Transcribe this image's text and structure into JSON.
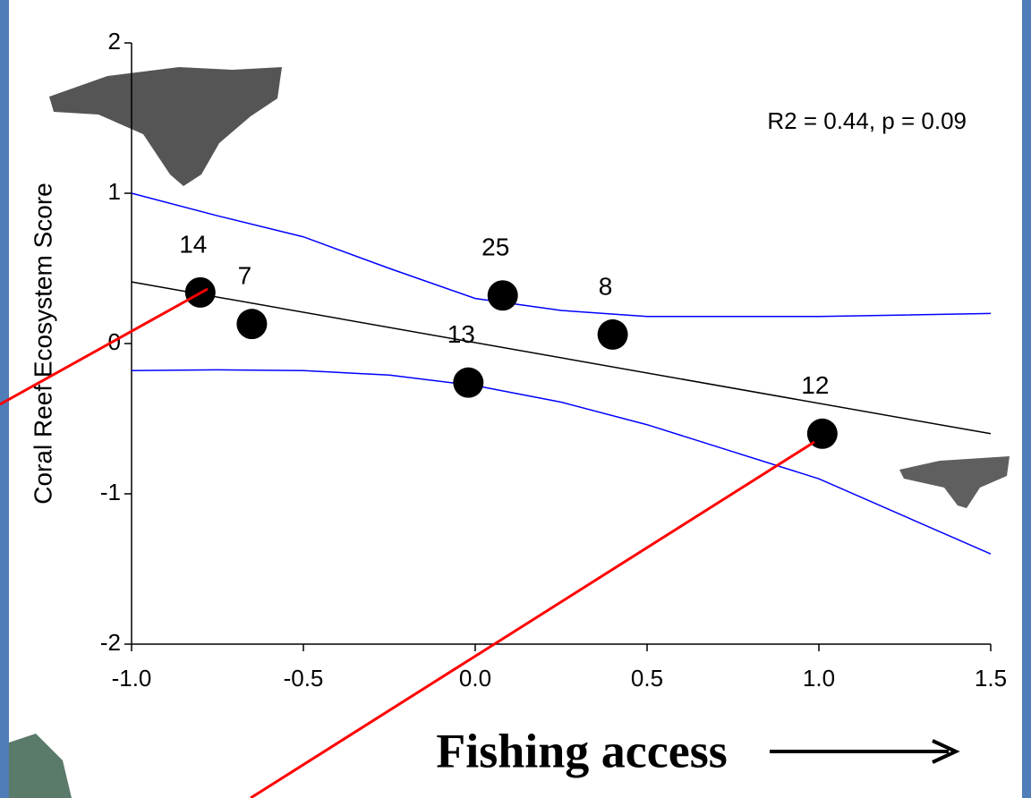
{
  "chart_data": {
    "type": "scatter",
    "y_label": "Coral Reef Ecosystem Score",
    "x_label": "Fishing access",
    "annotation": "R2 = 0.44, p = 0.09",
    "xlim": [
      -1.0,
      1.5
    ],
    "ylim": [
      -2,
      2
    ],
    "xticks": [
      {
        "value": -1.0,
        "label": "-1.0"
      },
      -0.5,
      {
        "value": 0.0,
        "label": "0.0"
      },
      0.5,
      {
        "value": 1.0,
        "label": "1.0"
      },
      1.5
    ],
    "yticks": [
      -2,
      -1,
      0,
      1,
      2
    ],
    "series": [
      {
        "type": "scatter",
        "color": "#000000",
        "x": [
          -0.8,
          -0.65,
          0.08,
          0.4,
          -0.02,
          1.01
        ],
        "values": [
          0.34,
          0.13,
          0.32,
          0.06,
          -0.26,
          -0.6
        ],
        "labels": [
          "14",
          "7",
          "25",
          "8",
          "13",
          "12"
        ]
      },
      {
        "type": "line",
        "color": "#000000",
        "x": [
          -1.0,
          1.5
        ],
        "values": [
          0.41,
          -0.6
        ]
      },
      {
        "type": "line",
        "color": "#0000ff",
        "x": [
          -1.0,
          -0.75,
          -0.5,
          -0.25,
          0.0,
          0.25,
          0.5,
          0.75,
          1.0,
          1.25,
          1.5
        ],
        "values": [
          1.0,
          0.85,
          0.71,
          0.5,
          0.3,
          0.22,
          0.18,
          0.18,
          0.18,
          0.19,
          0.2
        ]
      },
      {
        "type": "line",
        "color": "#0000ff",
        "x": [
          -1.0,
          -0.75,
          -0.5,
          -0.25,
          0.0,
          0.25,
          0.5,
          0.75,
          1.0,
          1.25,
          1.5
        ],
        "values": [
          -0.18,
          -0.175,
          -0.18,
          -0.21,
          -0.28,
          -0.39,
          -0.54,
          -0.72,
          -0.9,
          -1.15,
          -1.4
        ]
      }
    ]
  }
}
